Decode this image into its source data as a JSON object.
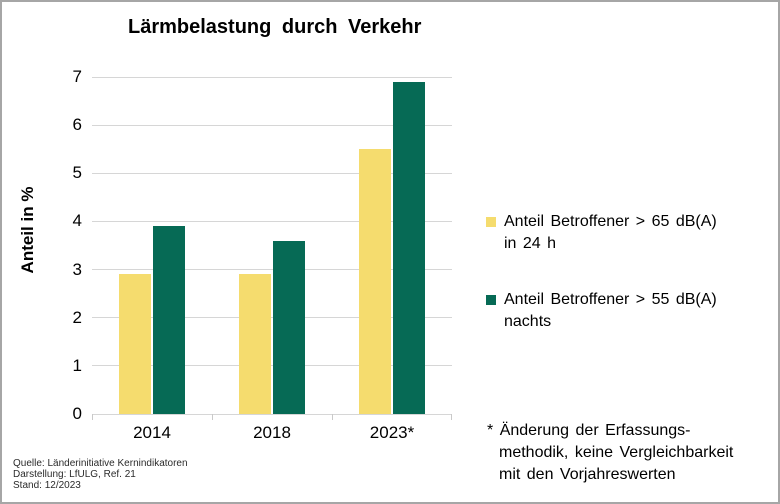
{
  "title": "Lärmbelastung durch Verkehr",
  "chart_data": {
    "type": "bar",
    "title": "Lärmbelastung durch Verkehr",
    "categories": [
      "2014",
      "2018",
      "2023*"
    ],
    "series": [
      {
        "name": "Anteil Betroffener > 65 dB(A) in 24 h",
        "color": "#f5dc6e",
        "values": [
          2.9,
          2.9,
          5.5
        ]
      },
      {
        "name": "Anteil Betroffener > 55 dB(A) nachts",
        "color": "#066a55",
        "values": [
          3.9,
          3.6,
          6.9
        ]
      }
    ],
    "xlabel": "",
    "ylabel": "Anteil in %",
    "ylim": [
      0,
      7
    ],
    "ytick_step": 1,
    "grid": true,
    "legend_position": "right"
  },
  "legend": {
    "items": [
      {
        "line1": "Anteil Betroffener > 65 dB(A)",
        "line2": "in 24 h",
        "color": "#f5dc6e"
      },
      {
        "line1": "Anteil Betroffener > 55 dB(A)",
        "line2": "nachts",
        "color": "#066a55"
      }
    ]
  },
  "footnote": {
    "marker": "*",
    "line1": "Änderung der Erfassungs-",
    "line2": "methodik, keine Vergleichbarkeit",
    "line3": "mit den Vorjahreswerten"
  },
  "source": {
    "line1": "Quelle: Länderinitiative Kernindikatoren",
    "line2": "Darstellung: LfULG, Ref. 21",
    "line3": "Stand: 12/2023"
  },
  "colors": {
    "grid": "#d6d6d6",
    "axis": "#c9c9c9",
    "frame_border": "#a6a6a6",
    "text": "#000000"
  }
}
